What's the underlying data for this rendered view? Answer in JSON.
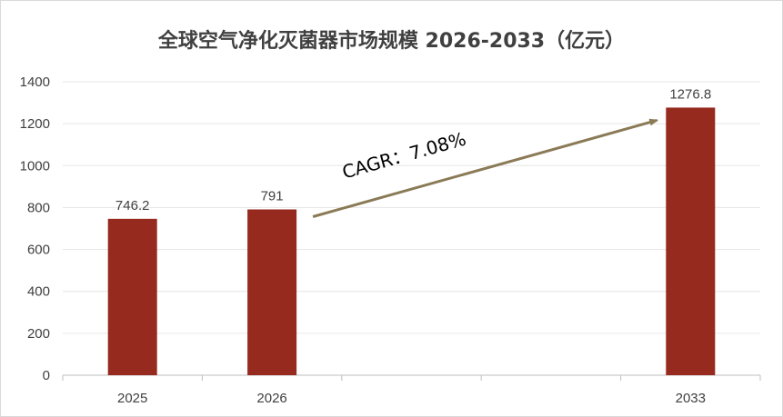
{
  "chart_data": {
    "type": "bar",
    "title": "全球空气净化灭菌器市场规模 2026-2033（亿元）",
    "categories": [
      "2025",
      "2026",
      "",
      "",
      "2033"
    ],
    "values": [
      746.2,
      791,
      null,
      null,
      1276.8
    ],
    "data_labels": [
      "746.2",
      "791",
      "",
      "",
      "1276.8"
    ],
    "ylim": [
      0,
      1400
    ],
    "yticks": [
      0,
      200,
      400,
      600,
      800,
      1000,
      1200,
      1400
    ],
    "grid": true,
    "legend": "none",
    "annotation": "CAGR：7.08%",
    "colors": {
      "bar": "#962a1f",
      "arrow": "#8a7a56",
      "grid": "#e6e6e6",
      "axis": "#bfbfbf"
    }
  }
}
